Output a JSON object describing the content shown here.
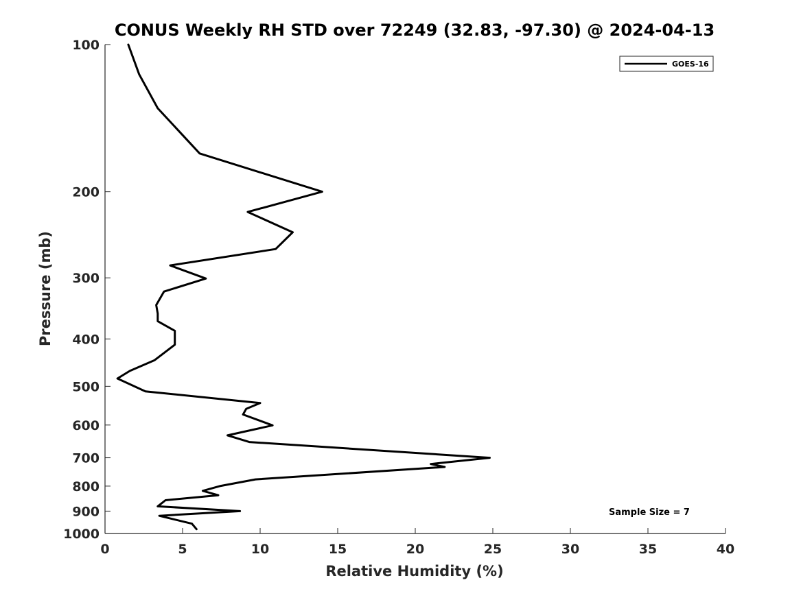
{
  "chart_data": {
    "type": "line",
    "title": "CONUS Weekly RH STD over 72249 (32.83, -97.30) @ 2024-04-13",
    "xlabel": "Relative Humidity (%)",
    "ylabel": "Pressure (mb)",
    "xlim": [
      0,
      40
    ],
    "ylim": [
      100,
      1000
    ],
    "yscale": "log",
    "y_reversed": true,
    "x_ticks": [
      "0",
      "5",
      "10",
      "15",
      "20",
      "25",
      "30",
      "35",
      "40"
    ],
    "y_ticks": [
      "100",
      "200",
      "300",
      "400",
      "500",
      "600",
      "700",
      "800",
      "900",
      "1000"
    ],
    "grid": false,
    "legend_position": "top-right",
    "series": [
      {
        "name": "GOES-16",
        "color": "#000000",
        "x": [
          1.5,
          2.2,
          3.4,
          6.1,
          14.0,
          9.2,
          12.1,
          11.0,
          4.2,
          6.5,
          3.8,
          3.3,
          3.4,
          3.4,
          4.5,
          4.5,
          3.2,
          1.6,
          0.8,
          2.6,
          10.0,
          9.1,
          8.9,
          10.8,
          7.9,
          9.3,
          24.8,
          21.0,
          21.9,
          9.7,
          7.4,
          6.3,
          7.3,
          3.9,
          3.4,
          8.7,
          3.5,
          5.6,
          5.9
        ],
        "y": [
          100,
          115,
          135,
          167,
          200,
          220,
          242,
          262,
          283,
          301,
          320,
          341,
          355,
          368,
          385,
          411,
          442,
          465,
          482,
          512,
          541,
          556,
          571,
          601,
          630,
          650,
          700,
          721,
          731,
          775,
          800,
          818,
          835,
          855,
          880,
          900,
          920,
          955,
          980
        ]
      }
    ],
    "annotations": [
      "Sample Size = 7"
    ]
  }
}
